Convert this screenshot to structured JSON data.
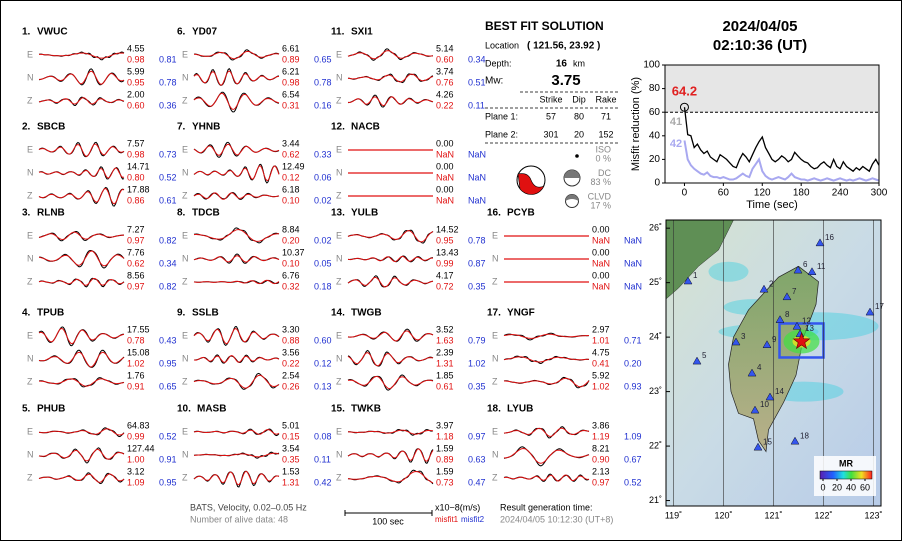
{
  "stations": [
    {
      "id": "1.",
      "name": "VWUC",
      "components": [
        {
          "label": "E",
          "amplitude": "4.55",
          "misfit1": "0.98",
          "misfit2": "0.81"
        },
        {
          "label": "N",
          "amplitude": "5.99",
          "misfit1": "0.95",
          "misfit2": "0.78"
        },
        {
          "label": "Z",
          "amplitude": "2.00",
          "misfit1": "0.60",
          "misfit2": "0.36"
        }
      ]
    },
    {
      "id": "2.",
      "name": "SBCB",
      "components": [
        {
          "label": "E",
          "amplitude": "7.57",
          "misfit1": "0.98",
          "misfit2": "0.73"
        },
        {
          "label": "N",
          "amplitude": "14.71",
          "misfit1": "0.80",
          "misfit2": "0.52"
        },
        {
          "label": "Z",
          "amplitude": "17.88",
          "misfit1": "0.86",
          "misfit2": "0.61"
        }
      ]
    },
    {
      "id": "3.",
      "name": "RLNB",
      "components": [
        {
          "label": "E",
          "amplitude": "7.27",
          "misfit1": "0.97",
          "misfit2": "0.82"
        },
        {
          "label": "N",
          "amplitude": "7.76",
          "misfit1": "0.62",
          "misfit2": "0.34"
        },
        {
          "label": "Z",
          "amplitude": "8.56",
          "misfit1": "0.97",
          "misfit2": "0.82"
        }
      ]
    },
    {
      "id": "4.",
      "name": "TPUB",
      "components": [
        {
          "label": "E",
          "amplitude": "17.55",
          "misfit1": "0.78",
          "misfit2": "0.43"
        },
        {
          "label": "N",
          "amplitude": "15.08",
          "misfit1": "1.02",
          "misfit2": "0.95"
        },
        {
          "label": "Z",
          "amplitude": "1.76",
          "misfit1": "0.91",
          "misfit2": "0.65"
        }
      ]
    },
    {
      "id": "5.",
      "name": "PHUB",
      "components": [
        {
          "label": "E",
          "amplitude": "64.83",
          "misfit1": "0.99",
          "misfit2": "0.52"
        },
        {
          "label": "N",
          "amplitude": "127.44",
          "misfit1": "1.00",
          "misfit2": "0.91"
        },
        {
          "label": "Z",
          "amplitude": "3.12",
          "misfit1": "1.09",
          "misfit2": "0.95"
        }
      ]
    },
    {
      "id": "6.",
      "name": "YD07",
      "components": [
        {
          "label": "E",
          "amplitude": "6.61",
          "misfit1": "0.89",
          "misfit2": "0.65"
        },
        {
          "label": "N",
          "amplitude": "6.21",
          "misfit1": "0.98",
          "misfit2": "0.78"
        },
        {
          "label": "Z",
          "amplitude": "6.54",
          "misfit1": "0.31",
          "misfit2": "0.16"
        }
      ]
    },
    {
      "id": "7.",
      "name": "YHNB",
      "components": [
        {
          "label": "E",
          "amplitude": "3.44",
          "misfit1": "0.62",
          "misfit2": "0.33"
        },
        {
          "label": "N",
          "amplitude": "12.49",
          "misfit1": "0.12",
          "misfit2": "0.06"
        },
        {
          "label": "Z",
          "amplitude": "6.18",
          "misfit1": "0.10",
          "misfit2": "0.02"
        }
      ]
    },
    {
      "id": "8.",
      "name": "TDCB",
      "components": [
        {
          "label": "E",
          "amplitude": "8.84",
          "misfit1": "0.20",
          "misfit2": "0.02"
        },
        {
          "label": "N",
          "amplitude": "10.37",
          "misfit1": "0.10",
          "misfit2": "0.05"
        },
        {
          "label": "Z",
          "amplitude": "6.76",
          "misfit1": "0.32",
          "misfit2": "0.18"
        }
      ]
    },
    {
      "id": "9.",
      "name": "SSLB",
      "components": [
        {
          "label": "E",
          "amplitude": "3.30",
          "misfit1": "0.88",
          "misfit2": "0.60"
        },
        {
          "label": "N",
          "amplitude": "3.56",
          "misfit1": "0.22",
          "misfit2": "0.12"
        },
        {
          "label": "Z",
          "amplitude": "2.54",
          "misfit1": "0.26",
          "misfit2": "0.13"
        }
      ]
    },
    {
      "id": "10.",
      "name": "MASB",
      "components": [
        {
          "label": "E",
          "amplitude": "5.01",
          "misfit1": "0.15",
          "misfit2": "0.08"
        },
        {
          "label": "N",
          "amplitude": "3.54",
          "misfit1": "0.35",
          "misfit2": "0.11"
        },
        {
          "label": "Z",
          "amplitude": "1.53",
          "misfit1": "1.31",
          "misfit2": "0.42"
        }
      ]
    },
    {
      "id": "11.",
      "name": "SXI1",
      "components": [
        {
          "label": "E",
          "amplitude": "5.14",
          "misfit1": "0.60",
          "misfit2": "0.34"
        },
        {
          "label": "N",
          "amplitude": "3.74",
          "misfit1": "0.76",
          "misfit2": "0.51"
        },
        {
          "label": "Z",
          "amplitude": "4.26",
          "misfit1": "0.22",
          "misfit2": "0.11"
        }
      ]
    },
    {
      "id": "12.",
      "name": "NACB",
      "components": [
        {
          "label": "E",
          "amplitude": "0.00",
          "misfit1": "NaN",
          "misfit2": "NaN"
        },
        {
          "label": "N",
          "amplitude": "0.00",
          "misfit1": "NaN",
          "misfit2": "NaN"
        },
        {
          "label": "Z",
          "amplitude": "0.00",
          "misfit1": "NaN",
          "misfit2": "NaN"
        }
      ]
    },
    {
      "id": "13.",
      "name": "YULB",
      "components": [
        {
          "label": "E",
          "amplitude": "14.52",
          "misfit1": "0.95",
          "misfit2": "0.78"
        },
        {
          "label": "N",
          "amplitude": "13.43",
          "misfit1": "0.99",
          "misfit2": "0.87"
        },
        {
          "label": "Z",
          "amplitude": "4.17",
          "misfit1": "0.72",
          "misfit2": "0.35"
        }
      ]
    },
    {
      "id": "14.",
      "name": "TWGB",
      "components": [
        {
          "label": "E",
          "amplitude": "3.52",
          "misfit1": "1.63",
          "misfit2": "0.79"
        },
        {
          "label": "N",
          "amplitude": "2.39",
          "misfit1": "1.31",
          "misfit2": "1.02"
        },
        {
          "label": "Z",
          "amplitude": "1.85",
          "misfit1": "0.61",
          "misfit2": "0.35"
        }
      ]
    },
    {
      "id": "15.",
      "name": "TWKB",
      "components": [
        {
          "label": "E",
          "amplitude": "3.97",
          "misfit1": "1.18",
          "misfit2": "0.97"
        },
        {
          "label": "N",
          "amplitude": "1.59",
          "misfit1": "0.89",
          "misfit2": "0.63"
        },
        {
          "label": "Z",
          "amplitude": "1.59",
          "misfit1": "0.73",
          "misfit2": "0.47"
        }
      ]
    },
    {
      "id": "16.",
      "name": "PCYB",
      "components": [
        {
          "label": "E",
          "amplitude": "0.00",
          "misfit1": "NaN",
          "misfit2": "NaN"
        },
        {
          "label": "N",
          "amplitude": "0.00",
          "misfit1": "NaN",
          "misfit2": "NaN"
        },
        {
          "label": "Z",
          "amplitude": "0.00",
          "misfit1": "NaN",
          "misfit2": "NaN"
        }
      ]
    },
    {
      "id": "17.",
      "name": "YNGF",
      "components": [
        {
          "label": "E",
          "amplitude": "2.97",
          "misfit1": "1.01",
          "misfit2": "0.71"
        },
        {
          "label": "N",
          "amplitude": "4.75",
          "misfit1": "0.41",
          "misfit2": "0.20"
        },
        {
          "label": "Z",
          "amplitude": "5.92",
          "misfit1": "1.02",
          "misfit2": "0.93"
        }
      ]
    },
    {
      "id": "18.",
      "name": "LYUB",
      "components": [
        {
          "label": "E",
          "amplitude": "3.86",
          "misfit1": "1.19",
          "misfit2": "1.09"
        },
        {
          "label": "N",
          "amplitude": "8.21",
          "misfit1": "0.90",
          "misfit2": "0.67"
        },
        {
          "label": "Z",
          "amplitude": "2.13",
          "misfit1": "0.97",
          "misfit2": "0.52"
        }
      ]
    }
  ],
  "best_fit": {
    "title": "BEST FIT SOLUTION",
    "location_label": "Location",
    "location": "( 121.56, 23.92 )",
    "depth_label": "Depth:",
    "depth": "16",
    "depth_unit": "km",
    "mw_label": "Mw:",
    "mw": "3.75",
    "headers": [
      "Strike",
      "Dip",
      "Rake"
    ],
    "planes": [
      {
        "label": "Plane 1:",
        "values": [
          "57",
          "80",
          "71"
        ]
      },
      {
        "label": "Plane 2:",
        "values": [
          "301",
          "20",
          "152"
        ]
      }
    ],
    "components": [
      {
        "name": "ISO",
        "percent": "0 %"
      },
      {
        "name": "DC",
        "percent": "83 %"
      },
      {
        "name": "CLVD",
        "percent": "17 %"
      }
    ]
  },
  "event_time": {
    "date": "2024/04/05",
    "time": "02:10:36  (UT)"
  },
  "footer": {
    "source": "BATS, Velocity, 0.02–0.05 Hz",
    "alive": "Number of alive data: 48",
    "scale": "100 sec",
    "unit": "x10−8(m/s)",
    "misfit1": "misfit1",
    "misfit2": "misfit2",
    "result_label": "Result generation time:",
    "result_time": "2024/04/05 10:12:30 (UT+8)"
  },
  "misfit_chart": {
    "type": "line",
    "y_label": "Misfit reduction (%)",
    "x_label": "Time (sec)",
    "xlim": [
      -30,
      300
    ],
    "xticks": [
      0,
      60,
      120,
      180,
      240,
      300
    ],
    "ylim": [
      0,
      100
    ],
    "yticks": [
      0,
      20,
      40,
      60,
      80,
      100
    ],
    "threshold_line": 60,
    "peak_label": "64.2",
    "peak_color": "#e02020",
    "x": [
      0,
      5,
      10,
      15,
      20,
      25,
      30,
      35,
      40,
      45,
      50,
      55,
      60,
      65,
      70,
      75,
      80,
      85,
      90,
      95,
      100,
      105,
      110,
      115,
      120,
      125,
      130,
      135,
      140,
      145,
      150,
      155,
      160,
      165,
      170,
      175,
      180,
      185,
      190,
      195,
      200,
      205,
      210,
      215,
      220,
      225,
      230,
      235,
      240,
      245,
      250,
      255,
      260,
      265,
      270,
      275,
      280,
      285,
      290,
      295,
      300
    ],
    "series": [
      {
        "label": "41",
        "color": "#000000",
        "values": [
          64.2,
          41,
          40,
          30,
          33,
          28,
          25,
          27,
          22,
          20,
          18,
          24,
          22,
          20,
          17,
          14,
          13,
          20,
          25,
          22,
          18,
          24,
          30,
          35,
          39,
          30,
          25,
          20,
          18,
          20,
          23,
          21,
          18,
          20,
          26,
          23,
          20,
          18,
          17,
          14,
          12,
          13,
          16,
          18,
          15,
          13,
          20,
          14,
          12,
          18,
          14,
          12,
          10,
          13,
          11,
          14,
          12,
          10,
          16,
          20,
          15
        ]
      },
      {
        "label": "42",
        "color": "#a8a8f0",
        "values": [
          36,
          20,
          15,
          12,
          10,
          8,
          7,
          9,
          6,
          5,
          5,
          4,
          5,
          4,
          3,
          3,
          4,
          6,
          8,
          6,
          5,
          12,
          16,
          20,
          10,
          6,
          4,
          3,
          4,
          5,
          4,
          3,
          5,
          8,
          5,
          4,
          3,
          3,
          2,
          3,
          4,
          3,
          2,
          3,
          4,
          3,
          2,
          3,
          4,
          3,
          2,
          3,
          2,
          3,
          4,
          3,
          2,
          3,
          4,
          3,
          2
        ]
      }
    ]
  },
  "map": {
    "xlim": [
      118.85,
      123.15
    ],
    "ylim": [
      20.9,
      26.15
    ],
    "xticks": [
      {
        "value": 119,
        "label": "119˚"
      },
      {
        "value": 120,
        "label": "120˚"
      },
      {
        "value": 121,
        "label": "121˚"
      },
      {
        "value": 122,
        "label": "122˚"
      },
      {
        "value": 123,
        "label": "123˚"
      }
    ],
    "yticks": [
      {
        "value": 21,
        "label": "21˚"
      },
      {
        "value": 22,
        "label": "22˚"
      },
      {
        "value": 23,
        "label": "23˚"
      },
      {
        "value": 24,
        "label": "24˚"
      },
      {
        "value": 25,
        "label": "25˚"
      },
      {
        "value": 26,
        "label": "26˚"
      }
    ],
    "epicenter": {
      "lon": 121.56,
      "lat": 23.92,
      "color": "#e01010"
    },
    "station_color": "#3355ee",
    "stations": [
      {
        "label": "1",
        "lon": 119.29,
        "lat": 25.03
      },
      {
        "label": "2",
        "lon": 120.81,
        "lat": 24.88
      },
      {
        "label": "3",
        "lon": 120.25,
        "lat": 23.91
      },
      {
        "label": "4",
        "lon": 120.57,
        "lat": 23.34
      },
      {
        "label": "5",
        "lon": 119.47,
        "lat": 23.56
      },
      {
        "label": "6",
        "lon": 121.49,
        "lat": 25.23
      },
      {
        "label": "7",
        "lon": 121.27,
        "lat": 24.74
      },
      {
        "label": "8",
        "lon": 121.13,
        "lat": 24.32
      },
      {
        "label": "9",
        "lon": 120.87,
        "lat": 23.86
      },
      {
        "label": "10",
        "lon": 120.63,
        "lat": 22.66
      },
      {
        "label": "11",
        "lon": 121.77,
        "lat": 25.2
      },
      {
        "label": "12",
        "lon": 121.47,
        "lat": 24.2
      },
      {
        "label": "13",
        "lon": 121.53,
        "lat": 24.06
      },
      {
        "label": "14",
        "lon": 120.93,
        "lat": 22.9
      },
      {
        "label": "15",
        "lon": 120.69,
        "lat": 21.98
      },
      {
        "label": "16",
        "lon": 121.93,
        "lat": 25.73
      },
      {
        "label": "17",
        "lon": 122.93,
        "lat": 24.46
      },
      {
        "label": "18",
        "lon": 121.43,
        "lat": 22.09
      }
    ],
    "colorbar": {
      "title": "MR",
      "ticks": [
        0,
        20,
        40,
        60
      ]
    }
  }
}
